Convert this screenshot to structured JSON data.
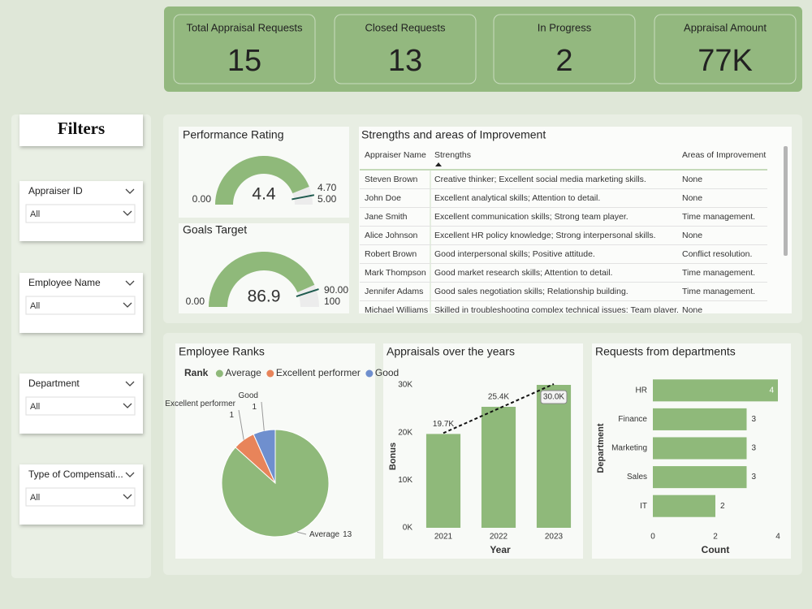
{
  "kpis": [
    {
      "label": "Total Appraisal Requests",
      "value": 15
    },
    {
      "label": "Closed Requests",
      "value": 13
    },
    {
      "label": "In Progress",
      "value": 2
    },
    {
      "label": "Appraisal Amount",
      "value": "77K"
    }
  ],
  "filters": {
    "title": "Filters",
    "slicers": [
      {
        "label": "Appraiser ID",
        "value": "All"
      },
      {
        "label": "Employee Name",
        "value": "All"
      },
      {
        "label": "Department",
        "value": "All"
      },
      {
        "label": "Type of Compensati...",
        "value": "All"
      }
    ]
  },
  "table": {
    "title": "Strengths and areas of Improvement",
    "columns": [
      "Appraiser Name",
      "Strengths",
      "Areas of Improvement"
    ],
    "rows": [
      [
        "Steven Brown",
        "Creative thinker; Excellent social media marketing skills.",
        "None"
      ],
      [
        "John Doe",
        "Excellent analytical skills; Attention to detail.",
        "None"
      ],
      [
        "Jane Smith",
        "Excellent communication skills; Strong team player.",
        "Time management."
      ],
      [
        "Alice Johnson",
        "Excellent HR policy knowledge; Strong interpersonal skills.",
        "None"
      ],
      [
        "Robert Brown",
        "Good interpersonal skills; Positive attitude.",
        "Conflict resolution."
      ],
      [
        "Mark Thompson",
        "Good market research skills; Attention to detail.",
        "Time management."
      ],
      [
        "Jennifer Adams",
        "Good sales negotiation skills; Relationship building.",
        "Time management."
      ],
      [
        "Michael Williams",
        "Skilled in troubleshooting complex technical issues; Team player.",
        "None"
      ]
    ]
  },
  "chart_data": [
    {
      "type": "gauge",
      "title": "Performance Rating",
      "value": 4.4,
      "ylim": [
        0,
        5
      ],
      "yticks": [
        {
          "value": 0,
          "label": "0.00"
        },
        {
          "value": 5,
          "label": "5.00"
        }
      ],
      "target": {
        "value": 4.7,
        "label": "4.70"
      },
      "color": "#8fb97a",
      "track_color": "#ececec",
      "target_color": "#1f5b4f"
    },
    {
      "type": "gauge",
      "title": "Goals Target",
      "value": 86.9,
      "ylim": [
        0,
        100
      ],
      "yticks": [
        {
          "value": 0,
          "label": "0.00"
        },
        100
      ],
      "target": {
        "value": 90,
        "label": "90.00"
      },
      "color": "#8fb97a",
      "track_color": "#ececec",
      "target_color": "#1f5b4f"
    },
    {
      "type": "pie",
      "title": "Employee Ranks",
      "legend_title": "Rank",
      "categories": [
        "Average",
        "Excellent performer",
        "Good"
      ],
      "values": [
        13,
        1,
        1
      ],
      "colors": [
        "#8fb97a",
        "#e8845a",
        "#6f8fce"
      ]
    },
    {
      "type": "bar",
      "title": "Appraisals over the years",
      "categories": [
        "2021",
        "2022",
        "2023"
      ],
      "values": [
        19700,
        25400,
        30000
      ],
      "value_labels": [
        "19.7K",
        "25.4K",
        "30.0K"
      ],
      "ylim": [
        0,
        30000
      ],
      "yticks": [
        {
          "value": 0,
          "label": "0K"
        },
        {
          "value": 10000,
          "label": "10K"
        },
        {
          "value": 20000,
          "label": "20K"
        },
        {
          "value": 30000,
          "label": "30K"
        }
      ],
      "xlabel": "Year",
      "ylabel": "Bonus",
      "color": "#8fb97a",
      "trendline": true
    },
    {
      "type": "barh",
      "title": "Requests from departments",
      "categories": [
        "HR",
        "Finance",
        "Marketing",
        "Sales",
        "IT"
      ],
      "values": [
        4,
        3,
        3,
        3,
        2
      ],
      "xlim": [
        0,
        4
      ],
      "xticks": [
        0,
        2,
        4
      ],
      "xlabel": "Count",
      "ylabel": "Department",
      "color": "#8fb97a"
    }
  ]
}
